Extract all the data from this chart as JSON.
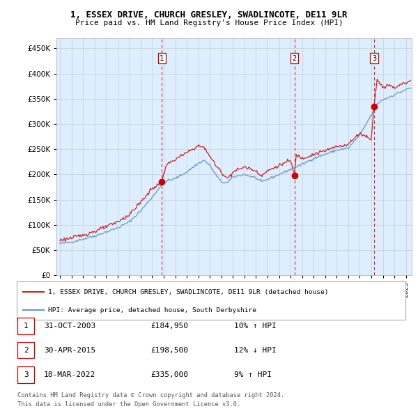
{
  "title": "1, ESSEX DRIVE, CHURCH GRESLEY, SWADLINCOTE, DE11 9LR",
  "subtitle": "Price paid vs. HM Land Registry's House Price Index (HPI)",
  "legend_line1": "1, ESSEX DRIVE, CHURCH GRESLEY, SWADLINCOTE, DE11 9LR (detached house)",
  "legend_line2": "HPI: Average price, detached house, South Derbyshire",
  "footer1": "Contains HM Land Registry data © Crown copyright and database right 2024.",
  "footer2": "This data is licensed under the Open Government Licence v3.0.",
  "transactions": [
    {
      "num": 1,
      "date": "31-OCT-2003",
      "price": 184950,
      "pct": "10%",
      "dir": "↑"
    },
    {
      "num": 2,
      "date": "30-APR-2015",
      "price": 198500,
      "pct": "12%",
      "dir": "↓"
    },
    {
      "num": 3,
      "date": "18-MAR-2022",
      "price": 335000,
      "pct": "9%",
      "dir": "↑"
    }
  ],
  "hpi_color": "#6699cc",
  "price_color": "#cc2222",
  "dot_color": "#cc0000",
  "vline_color": "#cc0000",
  "bg_color": "#ddeeff",
  "grid_color": "#cccccc",
  "outer_bg": "#ffffff",
  "ylim": [
    0,
    470000
  ],
  "yticks": [
    0,
    50000,
    100000,
    150000,
    200000,
    250000,
    300000,
    350000,
    400000,
    450000
  ],
  "xlim_start": 1994.7,
  "xlim_end": 2025.5
}
